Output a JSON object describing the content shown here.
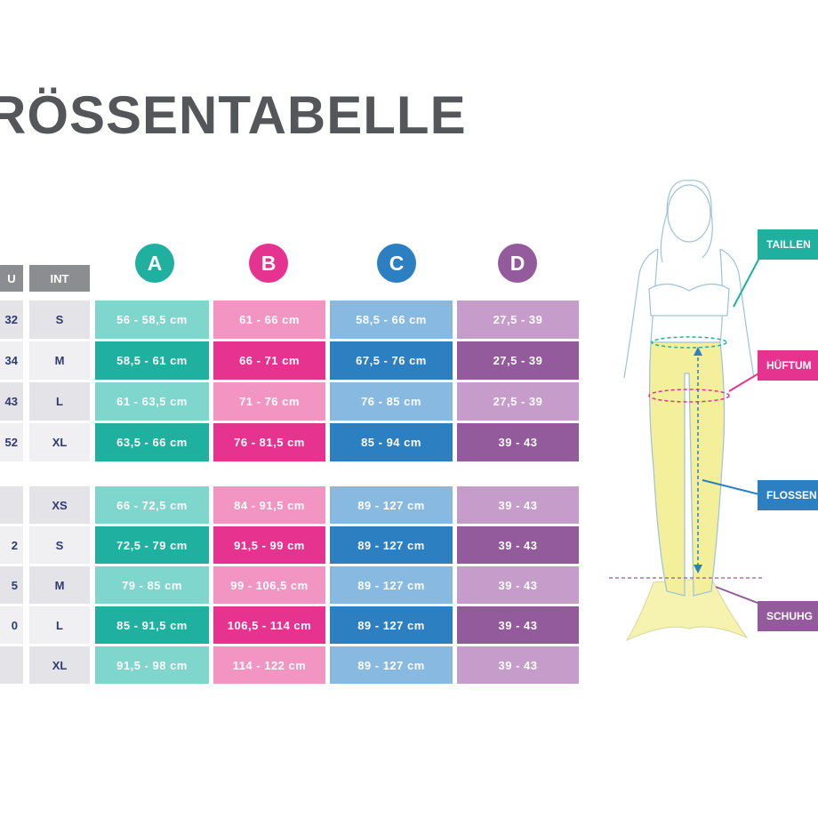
{
  "title": "RÖSSENTABELLE",
  "headers": {
    "eu": "U",
    "int": "INT"
  },
  "columns": [
    {
      "letter": "A",
      "color": "#1fb0a0",
      "light": "#7fd6cc"
    },
    {
      "letter": "B",
      "color": "#e6338f",
      "light": "#f295c2"
    },
    {
      "letter": "C",
      "color": "#2c7fc1",
      "light": "#88b9e0"
    },
    {
      "letter": "D",
      "color": "#935b9b",
      "light": "#c69ccb"
    }
  ],
  "group1": [
    {
      "eu": "32",
      "int": "S",
      "a": "56 - 58,5 cm",
      "b": "61 - 66 cm",
      "c": "58,5 - 66 cm",
      "d": "27,5 - 39"
    },
    {
      "eu": "34",
      "int": "M",
      "a": "58,5 - 61 cm",
      "b": "66 - 71 cm",
      "c": "67,5 - 76 cm",
      "d": "27,5 - 39"
    },
    {
      "eu": "43",
      "int": "L",
      "a": "61 - 63,5 cm",
      "b": "71 - 76 cm",
      "c": "76 - 85 cm",
      "d": "27,5 - 39"
    },
    {
      "eu": "52",
      "int": "XL",
      "a": "63,5 - 66 cm",
      "b": "76 - 81,5 cm",
      "c": "85 - 94 cm",
      "d": "39 - 43"
    }
  ],
  "group2": [
    {
      "eu": "",
      "int": "XS",
      "a": "66 - 72,5 cm",
      "b": "84 - 91,5 cm",
      "c": "89 - 127 cm",
      "d": "39 - 43"
    },
    {
      "eu": "2",
      "int": "S",
      "a": "72,5 - 79 cm",
      "b": "91,5 - 99 cm",
      "c": "89 - 127 cm",
      "d": "39 - 43"
    },
    {
      "eu": "5",
      "int": "M",
      "a": "79 - 85 cm",
      "b": "99 - 106,5 cm",
      "c": "89 - 127 cm",
      "d": "39 - 43"
    },
    {
      "eu": "0",
      "int": "L",
      "a": "85 - 91,5 cm",
      "b": "106,5 - 114 cm",
      "c": "89 - 127 cm",
      "d": "39 - 43"
    },
    {
      "eu": "",
      "int": "XL",
      "a": "91,5 - 98 cm",
      "b": "114 - 122 cm",
      "c": "89 - 127 cm",
      "d": "39 - 43"
    }
  ],
  "labels": [
    {
      "text": "TAILLEN",
      "color": "#1fb0a0"
    },
    {
      "text": "HÜFTUM",
      "color": "#e6338f"
    },
    {
      "text": "FLOSSEN",
      "color": "#2c7fc1"
    },
    {
      "text": "SCHUHG",
      "color": "#935b9b"
    }
  ]
}
